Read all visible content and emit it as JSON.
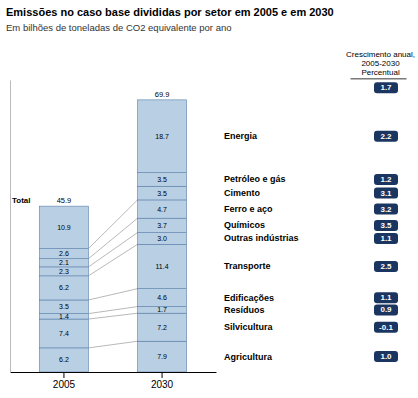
{
  "chart_data": {
    "type": "bar",
    "stacked": true,
    "data_labels": true,
    "title": "Emissões no caso base divididas por setor em 2005 e em 2030",
    "subtitle": "Em bilhões de toneladas de CO2 equivalente por ano",
    "categories": [
      "2005",
      "2030"
    ],
    "color": "#b8cfe4",
    "ylim": [
      0,
      75
    ],
    "yticks": [],
    "tick_labels": "x",
    "series": [
      {
        "name": "Agricultura",
        "values": [
          6.2,
          7.9
        ],
        "value_labels": [
          "6.2",
          "7.9"
        ],
        "growth": {
          "value": 1.0,
          "label": "1.0"
        }
      },
      {
        "name": "Silvicultura",
        "values": [
          7.4,
          7.2
        ],
        "value_labels": [
          "7.4",
          "7.2"
        ],
        "growth": {
          "value": -0.1,
          "label": "-0.1"
        }
      },
      {
        "name": "Resíduos",
        "values": [
          1.4,
          1.7
        ],
        "value_labels": [
          "1.4",
          "1.7"
        ],
        "growth": {
          "value": 0.9,
          "label": "0.9"
        }
      },
      {
        "name": "Edificações",
        "values": [
          3.5,
          4.6
        ],
        "value_labels": [
          "3.5",
          "4.6"
        ],
        "growth": {
          "value": 1.1,
          "label": "1.1"
        }
      },
      {
        "name": "Transporte",
        "values": [
          6.2,
          11.4
        ],
        "value_labels": [
          "6.2",
          "11.4"
        ],
        "growth": {
          "value": 2.5,
          "label": "2.5"
        }
      },
      {
        "name": "Outras indústrias",
        "values": [
          2.3,
          3.0
        ],
        "value_labels": [
          "2.3",
          "3.0"
        ],
        "growth": {
          "value": 1.1,
          "label": "1.1"
        }
      },
      {
        "name": "Químicos",
        "values": [
          2.1,
          3.7
        ],
        "value_labels": [
          "2.1",
          "3.7"
        ],
        "growth": {
          "value": 3.5,
          "label": "3.5"
        }
      },
      {
        "name": "Ferro e aço",
        "values": [
          2.6,
          4.7
        ],
        "value_labels": [
          "2.6",
          "4.7"
        ],
        "growth": {
          "value": 3.2,
          "label": "3.2"
        }
      },
      {
        "name": "Cimento",
        "values": [
          10.9,
          3.5
        ],
        "value_labels": [
          "10.9",
          "3.5"
        ],
        "growth": {
          "value": 3.1,
          "label": "3.1"
        }
      },
      {
        "name": "Petróleo e gás",
        "values": [
          null,
          3.5
        ],
        "value_labels": [
          null,
          "3.5"
        ],
        "growth": {
          "value": 1.2,
          "label": "1.2"
        }
      },
      {
        "name": "Energia",
        "values": [
          null,
          18.7
        ],
        "value_labels": [
          null,
          "18.7"
        ],
        "growth": {
          "value": 2.2,
          "label": "2.2"
        }
      }
    ],
    "totals": [
      45.9,
      69.9
    ],
    "total_label": "Total",
    "total_growth": 1.7,
    "growth_header": [
      "Crescimento anual,",
      "2005-2030",
      "Percentual"
    ]
  }
}
